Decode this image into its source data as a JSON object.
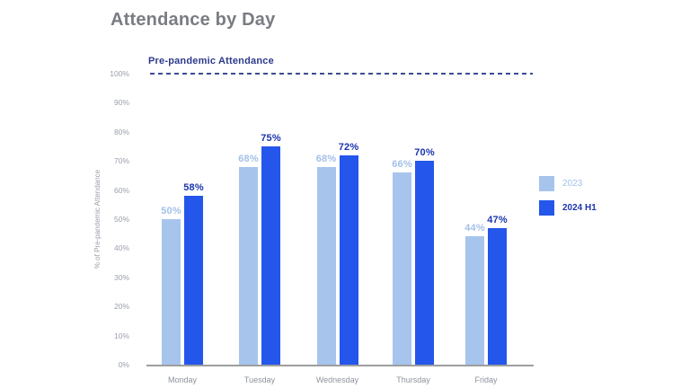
{
  "title": "Attendance by Day",
  "reference_line": {
    "label": "Pre-pandemic Attendance",
    "value": 100
  },
  "chart_data": {
    "type": "bar",
    "categories": [
      "Monday",
      "Tuesday",
      "Wednesday",
      "Thursday",
      "Friday"
    ],
    "series": [
      {
        "name": "2023",
        "values": [
          50,
          68,
          68,
          66,
          44
        ]
      },
      {
        "name": "2024 H1",
        "values": [
          58,
          75,
          72,
          70,
          47
        ]
      }
    ],
    "value_labels": {
      "2023": [
        "50%",
        "68%",
        "68%",
        "66%",
        "44%"
      ],
      "2024 H1": [
        "58%",
        "75%",
        "72%",
        "70%",
        "47%"
      ]
    },
    "title": "Attendance by Day",
    "xlabel": "",
    "ylabel": "% of Pre-pandemic Attendance",
    "yticks": [
      "0%",
      "10%",
      "20%",
      "30%",
      "40%",
      "50%",
      "60%",
      "70%",
      "80%",
      "90%",
      "100%"
    ],
    "ylim": [
      0,
      100
    ],
    "grid": false,
    "legend_position": "right",
    "reference_line_label": "Pre-pandemic Attendance",
    "reference_line_value": 100
  },
  "colors": {
    "series_2023_bar": "#a7c4ec",
    "series_2023_label": "#a3c0e8",
    "series_2024_bar": "#2456eb",
    "series_2024_label": "#1b35ae",
    "title_text": "#797c82",
    "reference_line": "#3d4a97",
    "reference_label": "#2d3a8c",
    "axis_line": "#9e9e9e",
    "tick_text": "#9aa0aa",
    "category_text": "#8d929c"
  }
}
